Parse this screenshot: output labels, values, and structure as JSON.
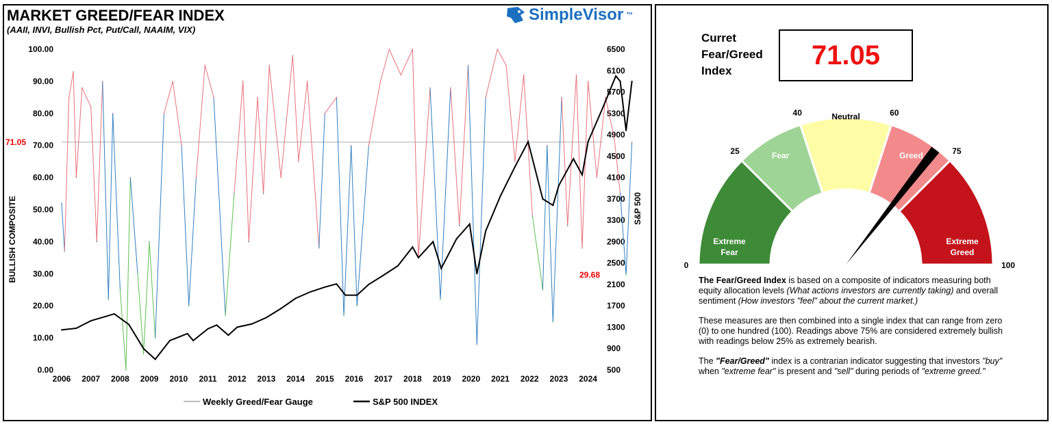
{
  "left": {
    "title": "MARKET GREED/FEAR INDEX",
    "subtitle": "(AAII, INVI, Bullish Pct, Put/Call, NAAIM, VIX)",
    "logo": "SimpleVisor",
    "logo_tm": "™"
  },
  "chart_data": {
    "type": "line",
    "ylabel": "BULLISH COMPOSITE",
    "y2label": "S&P 500",
    "ylim": [
      0,
      100
    ],
    "y2lim": [
      500,
      6500
    ],
    "yticks": [
      "0.00",
      "10.00",
      "20.00",
      "30.00",
      "40.00",
      "50.00",
      "60.00",
      "70.00",
      "80.00",
      "90.00",
      "100.00"
    ],
    "y2ticks": [
      "500",
      "900",
      "1300",
      "1700",
      "2100",
      "2500",
      "2900",
      "3300",
      "3700",
      "4100",
      "4500",
      "4900",
      "5300",
      "5700",
      "6100",
      "6500"
    ],
    "xticks": [
      "2006",
      "2007",
      "2008",
      "2009",
      "2010",
      "2011",
      "2012",
      "2013",
      "2014",
      "2015",
      "2016",
      "2017",
      "2018",
      "2019",
      "2020",
      "2021",
      "2022",
      "2023",
      "2024"
    ],
    "annotations": {
      "current": "71.05",
      "low": "29.68"
    },
    "colors": {
      "greed": "#e8707a",
      "neutral": "#2f7fc1",
      "fear": "#5cbf4f",
      "sp500": "#000000",
      "reference": "#bbbbbb"
    },
    "series": [
      {
        "name": "Weekly Greed/Fear Gauge",
        "x": [
          2006.0,
          2006.1,
          2006.25,
          2006.4,
          2006.5,
          2006.7,
          2007.0,
          2007.2,
          2007.4,
          2007.6,
          2007.75,
          2008.0,
          2008.2,
          2008.35,
          2008.6,
          2008.8,
          2009.0,
          2009.2,
          2009.5,
          2009.8,
          2010.1,
          2010.35,
          2010.6,
          2010.9,
          2011.2,
          2011.6,
          2011.9,
          2012.2,
          2012.4,
          2012.7,
          2012.9,
          2013.1,
          2013.5,
          2013.9,
          2014.1,
          2014.4,
          2014.8,
          2015.0,
          2015.4,
          2015.65,
          2015.9,
          2016.1,
          2016.5,
          2016.9,
          2017.2,
          2017.6,
          2018.0,
          2018.2,
          2018.6,
          2018.95,
          2019.3,
          2019.6,
          2019.9,
          2020.2,
          2020.5,
          2020.9,
          2021.2,
          2021.5,
          2021.8,
          2022.1,
          2022.45,
          2022.6,
          2022.8,
          2023.1,
          2023.3,
          2023.6,
          2023.8,
          2024.0,
          2024.3,
          2024.6,
          2024.9,
          2025.1,
          2025.3,
          2025.5
        ],
        "values": [
          52,
          37,
          85,
          93,
          60,
          88,
          82,
          40,
          90,
          22,
          80,
          25,
          0,
          60,
          30,
          5,
          40,
          10,
          80,
          90,
          70,
          20,
          60,
          95,
          85,
          17,
          55,
          90,
          40,
          85,
          55,
          95,
          60,
          98,
          65,
          90,
          38,
          80,
          85,
          17,
          70,
          20,
          70,
          90,
          100,
          92,
          100,
          35,
          88,
          22,
          88,
          45,
          95,
          8,
          85,
          100,
          95,
          65,
          92,
          48,
          25,
          70,
          15,
          85,
          45,
          92,
          38,
          90,
          60,
          85,
          72,
          55,
          29.68,
          71.05
        ]
      },
      {
        "name": "S&P 500 INDEX",
        "x": [
          2006.0,
          2006.5,
          2007.0,
          2007.5,
          2007.8,
          2008.3,
          2008.8,
          2009.2,
          2009.7,
          2010.3,
          2010.5,
          2011.0,
          2011.3,
          2011.7,
          2012.0,
          2012.5,
          2013.0,
          2013.5,
          2014.0,
          2014.5,
          2015.0,
          2015.4,
          2015.7,
          2016.1,
          2016.5,
          2017.0,
          2017.5,
          2018.0,
          2018.2,
          2018.7,
          2018.98,
          2019.5,
          2019.95,
          2020.2,
          2020.5,
          2021.0,
          2021.5,
          2021.95,
          2022.45,
          2022.8,
          2023.0,
          2023.5,
          2023.8,
          2024.0,
          2024.5,
          2024.95,
          2025.1,
          2025.3,
          2025.5
        ],
        "values": [
          1250,
          1280,
          1420,
          1500,
          1550,
          1350,
          900,
          700,
          1050,
          1180,
          1050,
          1270,
          1340,
          1150,
          1300,
          1360,
          1480,
          1650,
          1840,
          1960,
          2050,
          2110,
          1900,
          1900,
          2100,
          2270,
          2450,
          2800,
          2600,
          2900,
          2400,
          2950,
          3230,
          2300,
          3100,
          3750,
          4300,
          4770,
          3700,
          3580,
          3950,
          4450,
          4150,
          4770,
          5400,
          6000,
          5900,
          4980,
          5900
        ]
      }
    ]
  },
  "legend": [
    "Weekly Greed/Fear Gauge",
    "S&P 500 INDEX"
  ],
  "right": {
    "current_label": "Curret Fear/Greed Index",
    "current_value": "71.05",
    "gauge": {
      "value": 71.05,
      "segments": [
        {
          "label": "Extreme Fear",
          "from": 0,
          "to": 25,
          "color": "#3d8b37"
        },
        {
          "label": "Fear",
          "from": 25,
          "to": 40,
          "color": "#9ed495"
        },
        {
          "label": "Neutral",
          "from": 40,
          "to": 60,
          "color": "#fffca6"
        },
        {
          "label": "Greed",
          "from": 60,
          "to": 75,
          "color": "#f28a8c"
        },
        {
          "label": "Extreme Greed",
          "from": 75,
          "to": 100,
          "color": "#c4131a"
        }
      ],
      "ticks": [
        "0",
        "25",
        "40",
        "60",
        "75",
        "100"
      ]
    },
    "p1_bold": "The Fear/Greed Index",
    "p1_a": " is based on a composite of indicators measuring both equity allocation levels ",
    "p1_i1": "(What actions investors are currently taking)",
    "p1_b": " and overall sentiment ",
    "p1_i2": "(How investors \"feel\" about the current market.)",
    "p2": "These measures are then combined into a single index that can range from zero (0) to one hundred (100). Readings above 75% are considered extremely bullish with readings below 25% as extremely bearish.",
    "p3_a": "The ",
    "p3_b": "\"Fear/Greed\"",
    "p3_c": " index is a contrarian indicator suggesting that investors ",
    "p3_d": "\"buy\"",
    "p3_e": " when ",
    "p3_f": "\"extreme fear\"",
    "p3_g": " is present and ",
    "p3_h": "\"sell\"",
    "p3_i": " during periods of ",
    "p3_j": "\"extreme greed.\""
  }
}
